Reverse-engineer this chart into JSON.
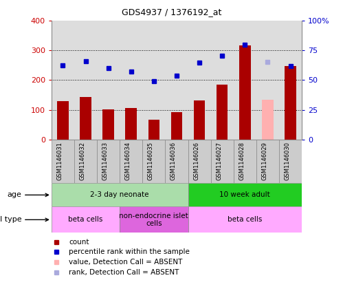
{
  "title": "GDS4937 / 1376192_at",
  "samples": [
    "GSM1146031",
    "GSM1146032",
    "GSM1146033",
    "GSM1146034",
    "GSM1146035",
    "GSM1146036",
    "GSM1146026",
    "GSM1146027",
    "GSM1146028",
    "GSM1146029",
    "GSM1146030"
  ],
  "bar_values": [
    130,
    143,
    101,
    106,
    68,
    92,
    131,
    185,
    315,
    135,
    248
  ],
  "bar_colors": [
    "#aa0000",
    "#aa0000",
    "#aa0000",
    "#aa0000",
    "#aa0000",
    "#aa0000",
    "#aa0000",
    "#aa0000",
    "#aa0000",
    "#ffb0b0",
    "#aa0000"
  ],
  "dot_values": [
    250,
    263,
    240,
    229,
    197,
    215,
    259,
    282,
    318,
    261,
    248
  ],
  "dot_colors": [
    "#0000cc",
    "#0000cc",
    "#0000cc",
    "#0000cc",
    "#0000cc",
    "#0000cc",
    "#0000cc",
    "#0000cc",
    "#0000cc",
    "#aaaadd",
    "#0000cc"
  ],
  "ylim_left": [
    0,
    400
  ],
  "ylim_right": [
    0,
    100
  ],
  "yticks_left": [
    0,
    100,
    200,
    300,
    400
  ],
  "yticks_right": [
    0,
    25,
    50,
    75,
    100
  ],
  "ytick_labels_left": [
    "0",
    "100",
    "200",
    "300",
    "400"
  ],
  "ytick_labels_right": [
    "0",
    "25",
    "50",
    "75",
    "100%"
  ],
  "age_groups": [
    {
      "label": "2-3 day neonate",
      "start": 0,
      "end": 6,
      "color": "#aaddaa"
    },
    {
      "label": "10 week adult",
      "start": 6,
      "end": 11,
      "color": "#22cc22"
    }
  ],
  "cell_type_groups": [
    {
      "label": "beta cells",
      "start": 0,
      "end": 3,
      "color": "#ffaaff"
    },
    {
      "label": "non-endocrine islet\ncells",
      "start": 3,
      "end": 6,
      "color": "#dd66dd"
    },
    {
      "label": "beta cells",
      "start": 6,
      "end": 11,
      "color": "#ffaaff"
    }
  ],
  "legend_items": [
    {
      "label": "count",
      "color": "#aa0000"
    },
    {
      "label": "percentile rank within the sample",
      "color": "#0000cc"
    },
    {
      "label": "value, Detection Call = ABSENT",
      "color": "#ffb0b0"
    },
    {
      "label": "rank, Detection Call = ABSENT",
      "color": "#aaaadd"
    }
  ],
  "bg_color": "#ffffff",
  "plot_bg_color": "#dddddd",
  "bar_width": 0.5
}
